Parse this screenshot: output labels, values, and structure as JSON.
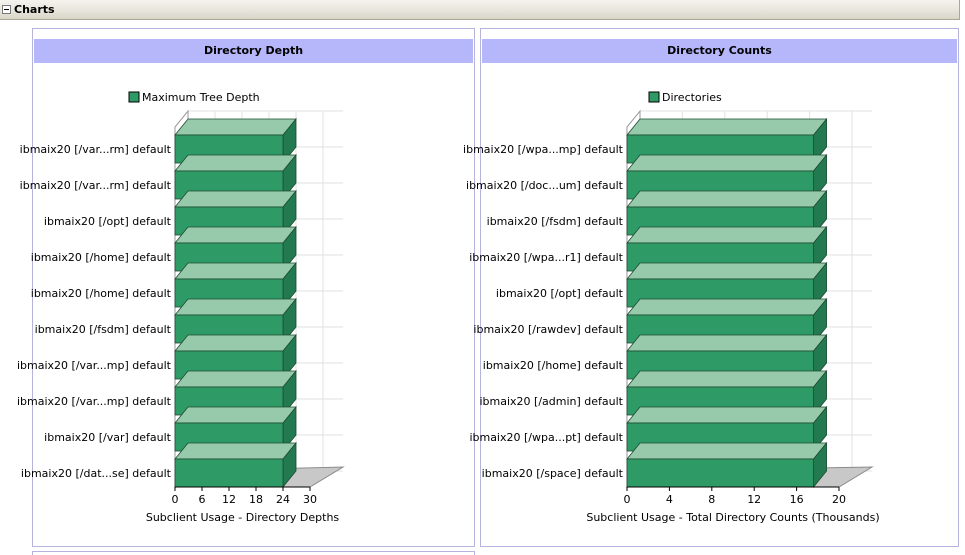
{
  "section": {
    "title": "Charts"
  },
  "colors": {
    "bar_front": "#2e9a66",
    "bar_top": "#96caaa",
    "bar_side": "#237a50",
    "header_band": "#b6b6fb",
    "floor": "#c8c8c8"
  },
  "chart_data": [
    {
      "type": "bar",
      "orientation": "horizontal",
      "title": "Directory Depth",
      "xlabel": "Subclient Usage - Directory Depths",
      "legend": "Maximum Tree Depth",
      "legend_position": "top",
      "xlim": [
        0,
        30
      ],
      "xticks": [
        "0",
        "6",
        "12",
        "18",
        "24",
        "30"
      ],
      "categories": [
        "ibmaix20 [/var...rm] default",
        "ibmaix20 [/var...rm] default",
        "ibmaix20 [/opt] default",
        "ibmaix20 [/home] default",
        "ibmaix20 [/home] default",
        "ibmaix20 [/fsdm] default",
        "ibmaix20 [/var...mp] default",
        "ibmaix20 [/var...mp] default",
        "ibmaix20 [/var] default",
        "ibmaix20 [/dat...se] default"
      ],
      "values": [
        24,
        24,
        24,
        24,
        24,
        24,
        24,
        24,
        24,
        24
      ]
    },
    {
      "type": "bar",
      "orientation": "horizontal",
      "title": "Directory Counts",
      "xlabel": "Subclient Usage - Total Directory Counts (Thousands)",
      "legend": "Directories",
      "legend_position": "top",
      "xlim": [
        0,
        20
      ],
      "xticks": [
        "0",
        "4",
        "8",
        "12",
        "16",
        "20"
      ],
      "categories": [
        "ibmaix20 [/wpa...mp] default",
        "ibmaix20 [/doc...um] default",
        "ibmaix20 [/fsdm] default",
        "ibmaix20 [/wpa...r1] default",
        "ibmaix20 [/opt] default",
        "ibmaix20 [/rawdev] default",
        "ibmaix20 [/home] default",
        "ibmaix20 [/admin] default",
        "ibmaix20 [/wpa...pt] default",
        "ibmaix20 [/space] default"
      ],
      "values": [
        17.6,
        17.6,
        17.6,
        17.6,
        17.6,
        17.6,
        17.6,
        17.6,
        17.6,
        17.6
      ]
    }
  ]
}
